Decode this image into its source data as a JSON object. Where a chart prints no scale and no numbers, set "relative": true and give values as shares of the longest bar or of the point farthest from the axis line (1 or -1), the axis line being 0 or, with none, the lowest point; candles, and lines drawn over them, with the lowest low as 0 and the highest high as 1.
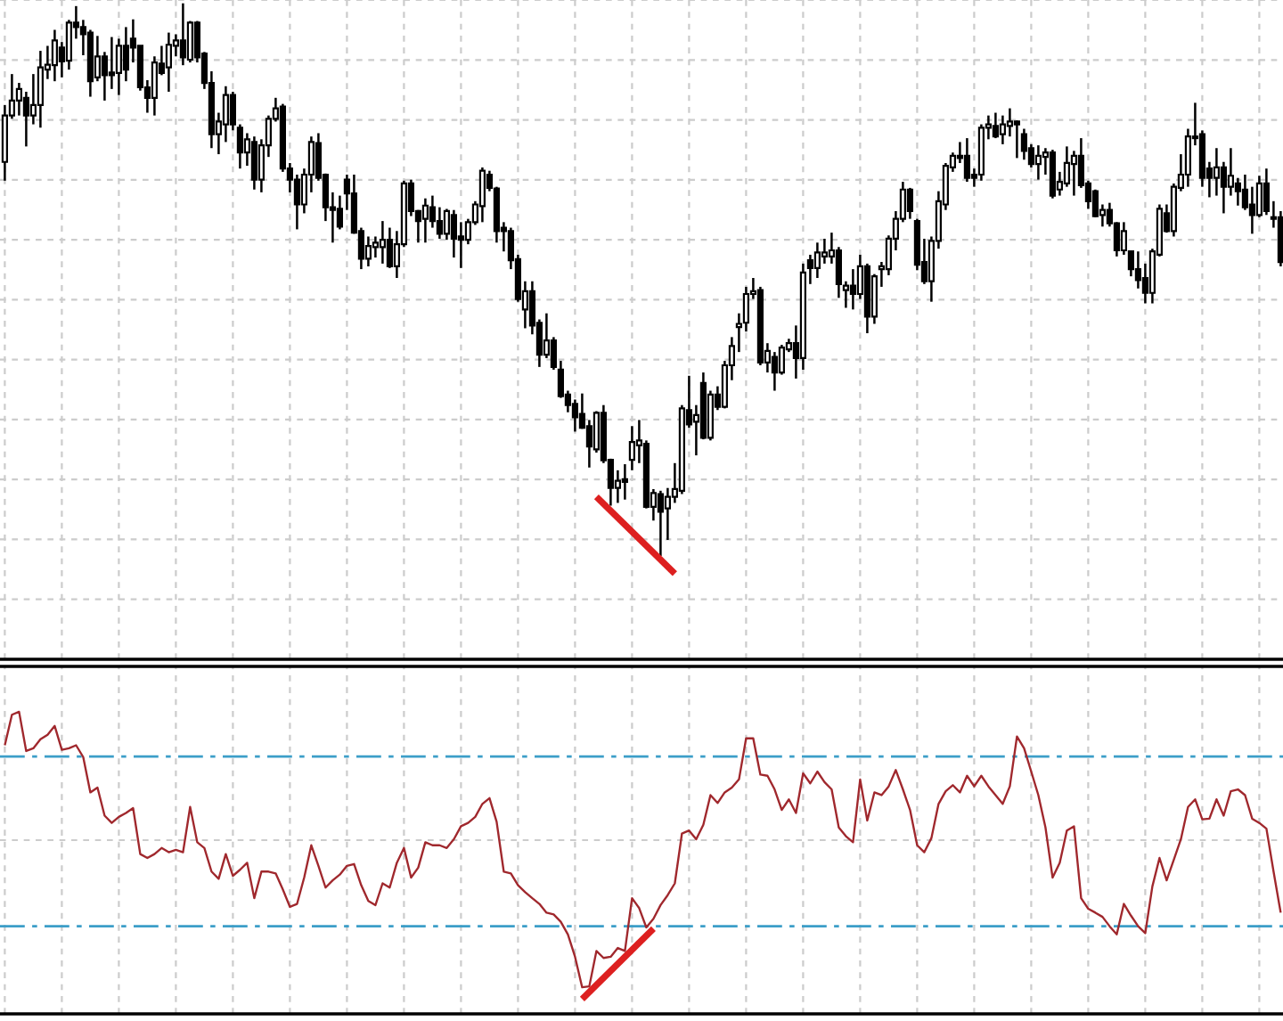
{
  "chart_data": [
    {
      "type": "candlestick",
      "relative": true,
      "color": "#000000",
      "grid": true,
      "tick_labels": false,
      "categories": [
        null,
        null,
        null,
        null,
        null,
        null,
        null,
        null,
        null,
        null,
        null,
        null,
        null,
        null,
        null,
        null,
        null,
        null,
        null,
        null,
        null,
        null,
        null,
        null,
        null,
        null,
        null,
        null,
        null,
        null,
        null,
        null,
        null,
        null,
        null,
        null,
        null,
        null,
        null,
        null,
        null,
        null,
        null,
        null,
        null,
        null,
        null,
        null,
        null,
        null,
        null,
        null,
        null,
        null,
        null,
        null,
        null,
        null,
        null,
        null,
        null,
        null,
        null,
        null,
        null,
        null,
        null,
        null,
        null,
        null,
        null,
        null,
        null,
        null,
        null,
        null,
        null,
        null,
        null,
        null,
        null,
        null,
        null,
        null,
        null,
        null,
        null,
        null,
        null,
        null,
        null,
        null,
        null,
        null,
        null,
        null,
        null,
        null,
        null,
        null,
        null,
        null,
        null,
        null,
        null,
        null,
        null,
        null,
        null,
        null,
        null,
        null,
        null,
        null,
        null,
        null,
        null,
        null,
        null,
        null,
        null,
        null,
        null,
        null,
        null,
        null,
        null,
        null,
        null,
        null,
        null,
        null,
        null,
        null,
        null,
        null,
        null,
        null,
        null,
        null,
        null,
        null,
        null,
        null,
        null,
        null,
        null,
        null,
        null,
        null,
        null,
        null,
        null,
        null,
        null,
        null,
        null,
        null,
        null,
        null,
        null,
        null,
        null,
        null,
        null,
        null,
        null,
        null,
        null,
        null,
        null,
        null,
        null,
        null,
        null,
        null,
        null,
        null,
        null,
        null
      ],
      "ohlc": [
        [
          0.713,
          0.816,
          0.679,
          0.797
        ],
        [
          0.797,
          0.872,
          0.791,
          0.824
        ],
        [
          0.824,
          0.856,
          0.797,
          0.845
        ],
        [
          0.829,
          0.84,
          0.741,
          0.797
        ],
        [
          0.797,
          0.872,
          0.781,
          0.816
        ],
        [
          0.816,
          0.914,
          0.775,
          0.884
        ],
        [
          0.88,
          0.923,
          0.863,
          0.889
        ],
        [
          0.888,
          0.952,
          0.859,
          0.933
        ],
        [
          0.92,
          0.93,
          0.866,
          0.895
        ],
        [
          0.896,
          0.97,
          0.88,
          0.965
        ],
        [
          0.965,
          0.995,
          0.936,
          0.957
        ],
        [
          0.957,
          0.97,
          0.906,
          0.944
        ],
        [
          0.947,
          0.952,
          0.831,
          0.859
        ],
        [
          0.866,
          0.941,
          0.859,
          0.904
        ],
        [
          0.904,
          0.912,
          0.824,
          0.87
        ],
        [
          0.875,
          0.939,
          0.845,
          0.87
        ],
        [
          0.874,
          0.936,
          0.834,
          0.923
        ],
        [
          0.923,
          0.957,
          0.859,
          0.88
        ],
        [
          0.936,
          0.971,
          0.893,
          0.92
        ],
        [
          0.923,
          0.923,
          0.842,
          0.848
        ],
        [
          0.848,
          0.861,
          0.802,
          0.829
        ],
        [
          0.829,
          0.904,
          0.797,
          0.893
        ],
        [
          0.891,
          0.923,
          0.87,
          0.874
        ],
        [
          0.884,
          0.947,
          0.84,
          0.925
        ],
        [
          0.923,
          0.944,
          0.904,
          0.933
        ],
        [
          0.933,
          1.0,
          0.888,
          0.902
        ],
        [
          0.898,
          0.968,
          0.893,
          0.965
        ],
        [
          0.965,
          0.968,
          0.893,
          0.902
        ],
        [
          0.909,
          0.912,
          0.845,
          0.856
        ],
        [
          0.856,
          0.877,
          0.738,
          0.763
        ],
        [
          0.763,
          0.802,
          0.727,
          0.786
        ],
        [
          0.781,
          0.85,
          0.749,
          0.834
        ],
        [
          0.834,
          0.84,
          0.77,
          0.781
        ],
        [
          0.775,
          0.781,
          0.701,
          0.73
        ],
        [
          0.73,
          0.765,
          0.706,
          0.754
        ],
        [
          0.749,
          0.759,
          0.663,
          0.681
        ],
        [
          0.681,
          0.754,
          0.658,
          0.743
        ],
        [
          0.743,
          0.797,
          0.722,
          0.791
        ],
        [
          0.791,
          0.829,
          0.786,
          0.81
        ],
        [
          0.813,
          0.818,
          0.695,
          0.701
        ],
        [
          0.701,
          0.711,
          0.658,
          0.681
        ],
        [
          0.681,
          0.69,
          0.591,
          0.636
        ],
        [
          0.636,
          0.701,
          0.62,
          0.69
        ],
        [
          0.69,
          0.759,
          0.658,
          0.749
        ],
        [
          0.747,
          0.765,
          0.679,
          0.684
        ],
        [
          0.69,
          0.692,
          0.606,
          0.631
        ],
        [
          0.631,
          0.658,
          0.567,
          0.626
        ],
        [
          0.628,
          0.652,
          0.591,
          0.596
        ],
        [
          0.681,
          0.69,
          0.626,
          0.656
        ],
        [
          0.656,
          0.69,
          0.583,
          0.585
        ],
        [
          0.588,
          0.594,
          0.519,
          0.538
        ],
        [
          0.538,
          0.578,
          0.524,
          0.561
        ],
        [
          0.559,
          0.578,
          0.54,
          0.567
        ],
        [
          0.559,
          0.606,
          0.529,
          0.572
        ],
        [
          0.572,
          0.594,
          0.521,
          0.524
        ],
        [
          0.524,
          0.588,
          0.503,
          0.564
        ],
        [
          0.564,
          0.679,
          0.559,
          0.674
        ],
        [
          0.674,
          0.681,
          0.615,
          0.624
        ],
        [
          0.624,
          0.626,
          0.567,
          0.606
        ],
        [
          0.61,
          0.647,
          0.567,
          0.634
        ],
        [
          0.631,
          0.652,
          0.594,
          0.606
        ],
        [
          0.606,
          0.631,
          0.574,
          0.583
        ],
        [
          0.583,
          0.628,
          0.572,
          0.624
        ],
        [
          0.617,
          0.626,
          0.54,
          0.574
        ],
        [
          0.578,
          0.604,
          0.521,
          0.572
        ],
        [
          0.572,
          0.61,
          0.564,
          0.604
        ],
        [
          0.604,
          0.642,
          0.599,
          0.636
        ],
        [
          0.633,
          0.703,
          0.604,
          0.697
        ],
        [
          0.69,
          0.697,
          0.66,
          0.666
        ],
        [
          0.665,
          0.668,
          0.567,
          0.588
        ],
        [
          0.594,
          0.604,
          0.551,
          0.588
        ],
        [
          0.588,
          0.594,
          0.519,
          0.535
        ],
        [
          0.537,
          0.545,
          0.46,
          0.465
        ],
        [
          0.446,
          0.497,
          0.412,
          0.479
        ],
        [
          0.479,
          0.497,
          0.401,
          0.417
        ],
        [
          0.422,
          0.428,
          0.342,
          0.364
        ],
        [
          0.364,
          0.439,
          0.358,
          0.39
        ],
        [
          0.39,
          0.396,
          0.337,
          0.342
        ],
        [
          0.337,
          0.353,
          0.286,
          0.289
        ],
        [
          0.292,
          0.299,
          0.26,
          0.273
        ],
        [
          0.275,
          0.283,
          0.225,
          0.251
        ],
        [
          0.257,
          0.294,
          0.23,
          0.232
        ],
        [
          0.235,
          0.246,
          0.16,
          0.198
        ],
        [
          0.193,
          0.262,
          0.187,
          0.259
        ],
        [
          0.259,
          0.273,
          0.168,
          0.173
        ],
        [
          0.174,
          0.176,
          0.091,
          0.123
        ],
        [
          0.123,
          0.155,
          0.096,
          0.136
        ],
        [
          0.139,
          0.166,
          0.102,
          0.134
        ],
        [
          0.174,
          0.235,
          0.155,
          0.206
        ],
        [
          0.2,
          0.246,
          0.168,
          0.209
        ],
        [
          0.203,
          0.209,
          0.086,
          0.089
        ],
        [
          0.089,
          0.121,
          0.064,
          0.114
        ],
        [
          0.112,
          0.118,
          0,
          0.08
        ],
        [
          0.086,
          0.123,
          0.029,
          0.107
        ],
        [
          0.107,
          0.168,
          0.096,
          0.121
        ],
        [
          0.118,
          0.273,
          0.112,
          0.267
        ],
        [
          0.264,
          0.326,
          0.232,
          0.238
        ],
        [
          0.243,
          0.273,
          0.182,
          0.255
        ],
        [
          0.313,
          0.332,
          0.211,
          0.214
        ],
        [
          0.214,
          0.299,
          0.209,
          0.292
        ],
        [
          0.292,
          0.307,
          0.264,
          0.27
        ],
        [
          0.27,
          0.353,
          0.267,
          0.345
        ],
        [
          0.345,
          0.396,
          0.318,
          0.38
        ],
        [
          0.414,
          0.439,
          0.369,
          0.42
        ],
        [
          0.422,
          0.487,
          0.406,
          0.474
        ],
        [
          0.474,
          0.503,
          0.465,
          0.479
        ],
        [
          0.481,
          0.487,
          0.345,
          0.35
        ],
        [
          0.35,
          0.385,
          0.332,
          0.371
        ],
        [
          0.36,
          0.369,
          0.299,
          0.332
        ],
        [
          0.332,
          0.382,
          0.328,
          0.377
        ],
        [
          0.374,
          0.393,
          0.369,
          0.385
        ],
        [
          0.385,
          0.417,
          0.321,
          0.358
        ],
        [
          0.358,
          0.529,
          0.337,
          0.513
        ],
        [
          0.535,
          0.545,
          0.492,
          0.521
        ],
        [
          0.521,
          0.567,
          0.503,
          0.549
        ],
        [
          0.542,
          0.574,
          0.529,
          0.549
        ],
        [
          0.542,
          0.585,
          0.529,
          0.553
        ],
        [
          0.553,
          0.559,
          0.467,
          0.492
        ],
        [
          0.481,
          0.497,
          0.449,
          0.489
        ],
        [
          0.489,
          0.519,
          0.446,
          0.474
        ],
        [
          0.474,
          0.545,
          0.465,
          0.524
        ],
        [
          0.524,
          0.529,
          0.403,
          0.433
        ],
        [
          0.433,
          0.51,
          0.42,
          0.506
        ],
        [
          0.519,
          0.532,
          0.487,
          0.524
        ],
        [
          0.519,
          0.58,
          0.508,
          0.574
        ],
        [
          0.574,
          0.624,
          0.553,
          0.61
        ],
        [
          0.61,
          0.677,
          0.604,
          0.663
        ],
        [
          0.663,
          0.666,
          0.61,
          0.624
        ],
        [
          0.606,
          0.61,
          0.517,
          0.527
        ],
        [
          0.532,
          0.574,
          0.492,
          0.497
        ],
        [
          0.497,
          0.578,
          0.46,
          0.57
        ],
        [
          0.57,
          0.66,
          0.556,
          0.642
        ],
        [
          0.636,
          0.711,
          0.626,
          0.706
        ],
        [
          0.703,
          0.73,
          0.695,
          0.724
        ],
        [
          0.724,
          0.749,
          0.711,
          0.72
        ],
        [
          0.724,
          0.756,
          0.677,
          0.684
        ],
        [
          0.69,
          0.701,
          0.668,
          0.684
        ],
        [
          0.69,
          0.781,
          0.679,
          0.775
        ],
        [
          0.775,
          0.797,
          0.754,
          0.781
        ],
        [
          0.778,
          0.802,
          0.756,
          0.759
        ],
        [
          0.763,
          0.797,
          0.745,
          0.781
        ],
        [
          0.778,
          0.81,
          0.759,
          0.786
        ],
        [
          0.786,
          0.788,
          0.72,
          0.781
        ],
        [
          0.763,
          0.773,
          0.717,
          0.733
        ],
        [
          0.738,
          0.745,
          0.703,
          0.709
        ],
        [
          0.709,
          0.743,
          0.681,
          0.724
        ],
        [
          0.722,
          0.738,
          0.69,
          0.73
        ],
        [
          0.73,
          0.735,
          0.647,
          0.652
        ],
        [
          0.663,
          0.695,
          0.652,
          0.677
        ],
        [
          0.674,
          0.741,
          0.668,
          0.711
        ],
        [
          0.709,
          0.733,
          0.652,
          0.724
        ],
        [
          0.724,
          0.756,
          0.666,
          0.671
        ],
        [
          0.674,
          0.679,
          0.628,
          0.642
        ],
        [
          0.66,
          0.663,
          0.613,
          0.615
        ],
        [
          0.617,
          0.636,
          0.596,
          0.626
        ],
        [
          0.626,
          0.639,
          0.596,
          0.602
        ],
        [
          0.602,
          0.604,
          0.542,
          0.553
        ],
        [
          0.553,
          0.604,
          0.545,
          0.588
        ],
        [
          0.551,
          0.553,
          0.506,
          0.519
        ],
        [
          0.519,
          0.551,
          0.484,
          0.499
        ],
        [
          0.503,
          0.529,
          0.457,
          0.476
        ],
        [
          0.476,
          0.556,
          0.457,
          0.551
        ],
        [
          0.545,
          0.636,
          0.542,
          0.628
        ],
        [
          0.62,
          0.636,
          0.585,
          0.588
        ],
        [
          0.588,
          0.674,
          0.578,
          0.668
        ],
        [
          0.666,
          0.727,
          0.66,
          0.69
        ],
        [
          0.69,
          0.773,
          0.668,
          0.759
        ],
        [
          0.756,
          0.82,
          0.743,
          0.759
        ],
        [
          0.763,
          0.77,
          0.668,
          0.684
        ],
        [
          0.701,
          0.713,
          0.649,
          0.684
        ],
        [
          0.684,
          0.738,
          0.652,
          0.703
        ],
        [
          0.703,
          0.713,
          0.62,
          0.668
        ],
        [
          0.668,
          0.738,
          0.652,
          0.688
        ],
        [
          0.674,
          0.684,
          0.634,
          0.66
        ],
        [
          0.663,
          0.69,
          0.626,
          0.631
        ],
        [
          0.636,
          0.668,
          0.583,
          0.617
        ],
        [
          0.617,
          0.688,
          0.613,
          0.674
        ],
        [
          0.674,
          0.701,
          0.617,
          0.624
        ],
        [
          0.61,
          0.642,
          0.594,
          0.613
        ],
        [
          0.613,
          0.624,
          0.524,
          0.532
        ]
      ],
      "series": [
        {
          "type": "line",
          "color": "#dd2020",
          "values": [
            null,
            null,
            null,
            null,
            null,
            null,
            null,
            null,
            null,
            null,
            null,
            null,
            null,
            null,
            null,
            null,
            null,
            null,
            null,
            null,
            null,
            null,
            null,
            null,
            null,
            null,
            null,
            null,
            null,
            null,
            null,
            null,
            null,
            null,
            null,
            null,
            null,
            null,
            null,
            null,
            null,
            null,
            null,
            null,
            null,
            null,
            null,
            null,
            null,
            null,
            null,
            null,
            null,
            null,
            null,
            null,
            null,
            null,
            null,
            null,
            null,
            null,
            null,
            null,
            null,
            null,
            null,
            null,
            null,
            null,
            null,
            null,
            null,
            null,
            null,
            null,
            null,
            null,
            null,
            null,
            null,
            null,
            null,
            0.107,
            null,
            null,
            null,
            null,
            null,
            null,
            null,
            null,
            null,
            null,
            -0.032,
            null,
            null,
            null,
            null,
            null,
            null,
            null,
            null,
            null,
            null,
            null,
            null,
            null,
            null,
            null,
            null,
            null,
            null,
            null,
            null,
            null,
            null,
            null,
            null,
            null,
            null,
            null,
            null,
            null,
            null,
            null,
            null,
            null,
            null,
            null,
            null,
            null,
            null,
            null,
            null,
            null,
            null,
            null,
            null,
            null,
            null,
            null,
            null,
            null,
            null,
            null,
            null,
            null,
            null,
            null,
            null,
            null,
            null,
            null,
            null,
            null,
            null,
            null,
            null,
            null,
            null,
            null,
            null,
            null,
            null,
            null,
            null,
            null,
            null,
            null,
            null,
            null,
            null,
            null,
            null,
            null,
            null,
            null,
            null,
            null
          ]
        }
      ]
    },
    {
      "type": "line",
      "relative": true,
      "grid": true,
      "tick_labels": false,
      "categories": [
        null,
        null,
        null,
        null,
        null,
        null,
        null,
        null,
        null,
        null,
        null,
        null,
        null,
        null,
        null,
        null,
        null,
        null,
        null,
        null,
        null,
        null,
        null,
        null,
        null,
        null,
        null,
        null,
        null,
        null,
        null,
        null,
        null,
        null,
        null,
        null,
        null,
        null,
        null,
        null,
        null,
        null,
        null,
        null,
        null,
        null,
        null,
        null,
        null,
        null,
        null,
        null,
        null,
        null,
        null,
        null,
        null,
        null,
        null,
        null,
        null,
        null,
        null,
        null,
        null,
        null,
        null,
        null,
        null,
        null,
        null,
        null,
        null,
        null,
        null,
        null,
        null,
        null,
        null,
        null,
        null,
        null,
        null,
        null,
        null,
        null,
        null,
        null,
        null,
        null,
        null,
        null,
        null,
        null,
        null,
        null,
        null,
        null,
        null,
        null,
        null,
        null,
        null,
        null,
        null,
        null,
        null,
        null,
        null,
        null,
        null,
        null,
        null,
        null,
        null,
        null,
        null,
        null,
        null,
        null,
        null,
        null,
        null,
        null,
        null,
        null,
        null,
        null,
        null,
        null,
        null,
        null,
        null,
        null,
        null,
        null,
        null,
        null,
        null,
        null,
        null,
        null,
        null,
        null,
        null,
        null,
        null,
        null,
        null,
        null,
        null,
        null,
        null,
        null,
        null,
        null,
        null,
        null,
        null,
        null,
        null,
        null,
        null,
        null,
        null,
        null,
        null,
        null,
        null,
        null,
        null,
        null,
        null,
        null,
        null,
        null,
        null,
        null,
        null,
        null
      ],
      "ref_lines": [
        {
          "axis": "y",
          "value": 0.852,
          "color": "#3c9ec8",
          "line_style": "dashed"
        },
        {
          "axis": "y",
          "value": 0.29,
          "color": "#3c9ec8",
          "line_style": "dashed"
        }
      ],
      "series": [
        {
          "color": "#a0282d",
          "values": [
            0.889,
            0.99,
            1.0,
            0.87,
            0.879,
            0.909,
            0.924,
            0.953,
            0.874,
            0.879,
            0.889,
            0.85,
            0.733,
            0.749,
            0.656,
            0.632,
            0.652,
            0.665,
            0.681,
            0.529,
            0.516,
            0.529,
            0.549,
            0.535,
            0.543,
            0.535,
            0.685,
            0.568,
            0.549,
            0.471,
            0.447,
            0.529,
            0.457,
            0.477,
            0.5,
            0.383,
            0.471,
            0.471,
            0.465,
            0.412,
            0.354,
            0.364,
            0.451,
            0.558,
            0.49,
            0.418,
            0.442,
            0.461,
            0.49,
            0.496,
            0.426,
            0.374,
            0.36,
            0.432,
            0.418,
            0.5,
            0.549,
            0.451,
            0.484,
            0.568,
            0.558,
            0.558,
            0.549,
            0.578,
            0.621,
            0.632,
            0.652,
            0.695,
            0.714,
            0.636,
            0.471,
            0.465,
            0.426,
            0.403,
            0.383,
            0.364,
            0.335,
            0.329,
            0.305,
            0.263,
            0.189,
            0.088,
            0.091,
            0.208,
            0.185,
            0.189,
            0.218,
            0.208,
            0.383,
            0.35,
            0.286,
            0.315,
            0.36,
            0.393,
            0.432,
            0.597,
            0.607,
            0.578,
            0.626,
            0.724,
            0.698,
            0.733,
            0.749,
            0.776,
            0.912,
            0.912,
            0.792,
            0.788,
            0.743,
            0.675,
            0.71,
            0.665,
            0.796,
            0.763,
            0.802,
            0.767,
            0.743,
            0.617,
            0.588,
            0.568,
            0.776,
            0.64,
            0.733,
            0.724,
            0.753,
            0.807,
            0.743,
            0.675,
            0.558,
            0.535,
            0.582,
            0.695,
            0.737,
            0.757,
            0.733,
            0.788,
            0.753,
            0.788,
            0.753,
            0.724,
            0.695,
            0.753,
            0.918,
            0.879,
            0.802,
            0.724,
            0.617,
            0.451,
            0.5,
            0.607,
            0.621,
            0.383,
            0.348,
            0.335,
            0.321,
            0.29,
            0.263,
            0.364,
            0.325,
            0.29,
            0.267,
            0.422,
            0.516,
            0.442,
            0.51,
            0.578,
            0.685,
            0.71,
            0.644,
            0.646,
            0.71,
            0.656,
            0.737,
            0.743,
            0.724,
            0.646,
            0.632,
            0.613,
            0.471,
            0.335
          ]
        },
        {
          "type": "line",
          "color": "#dd2020",
          "values": [
            null,
            null,
            null,
            null,
            null,
            null,
            null,
            null,
            null,
            null,
            null,
            null,
            null,
            null,
            null,
            null,
            null,
            null,
            null,
            null,
            null,
            null,
            null,
            null,
            null,
            null,
            null,
            null,
            null,
            null,
            null,
            null,
            null,
            null,
            null,
            null,
            null,
            null,
            null,
            null,
            null,
            null,
            null,
            null,
            null,
            null,
            null,
            null,
            null,
            null,
            null,
            null,
            null,
            null,
            null,
            null,
            null,
            null,
            null,
            null,
            null,
            null,
            null,
            null,
            null,
            null,
            null,
            null,
            null,
            null,
            null,
            null,
            null,
            null,
            null,
            null,
            null,
            null,
            null,
            null,
            null,
            0.049,
            null,
            null,
            null,
            null,
            null,
            null,
            null,
            null,
            null,
            0.282,
            null,
            null,
            null,
            null,
            null,
            null,
            null,
            null,
            null,
            null,
            null,
            null,
            null,
            null,
            null,
            null,
            null,
            null,
            null,
            null,
            null,
            null,
            null,
            null,
            null,
            null,
            null,
            null,
            null,
            null,
            null,
            null,
            null,
            null,
            null,
            null,
            null,
            null,
            null,
            null,
            null,
            null,
            null,
            null,
            null,
            null,
            null,
            null,
            null,
            null,
            null,
            null,
            null,
            null,
            null,
            null,
            null,
            null,
            null,
            null,
            null,
            null,
            null,
            null,
            null,
            null,
            null,
            null,
            null,
            null,
            null,
            null,
            null,
            null,
            null,
            null,
            null,
            null,
            null,
            null,
            null,
            null,
            null,
            null,
            null,
            null,
            null,
            null
          ]
        }
      ]
    }
  ]
}
